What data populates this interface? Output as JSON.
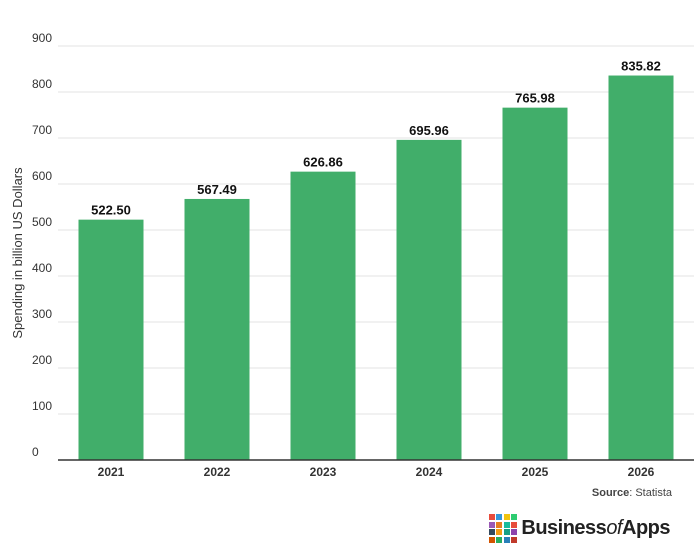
{
  "chart_data": {
    "type": "bar",
    "categories": [
      "2021",
      "2022",
      "2023",
      "2024",
      "2025",
      "2026"
    ],
    "values": [
      522.5,
      567.49,
      626.86,
      695.96,
      765.98,
      835.82
    ],
    "data_labels": [
      "522.50",
      "567.49",
      "626.86",
      "695.96",
      "765.98",
      "835.82"
    ],
    "ylabel": "Spending in billion US Dollars",
    "xlabel": "",
    "ylim": [
      0,
      900
    ],
    "yticks": [
      0,
      100,
      200,
      300,
      400,
      500,
      600,
      700,
      800,
      900
    ],
    "grid": true,
    "bar_color": "#41ae6a",
    "legend": "none"
  },
  "source": {
    "label": "Source",
    "text": ": Statista"
  },
  "brand": {
    "name_part1": "Business",
    "name_part2": "of",
    "name_part3": "Apps",
    "mark_colors": [
      "#e84c3d",
      "#3498db",
      "#f1c40f",
      "#2ecc71",
      "#9b59b6",
      "#e67e22",
      "#1abc9c",
      "#e74c3c",
      "#34495e",
      "#f39c12",
      "#16a085",
      "#8e44ad",
      "#d35400",
      "#27ae60",
      "#2980b9",
      "#c0392b"
    ]
  }
}
